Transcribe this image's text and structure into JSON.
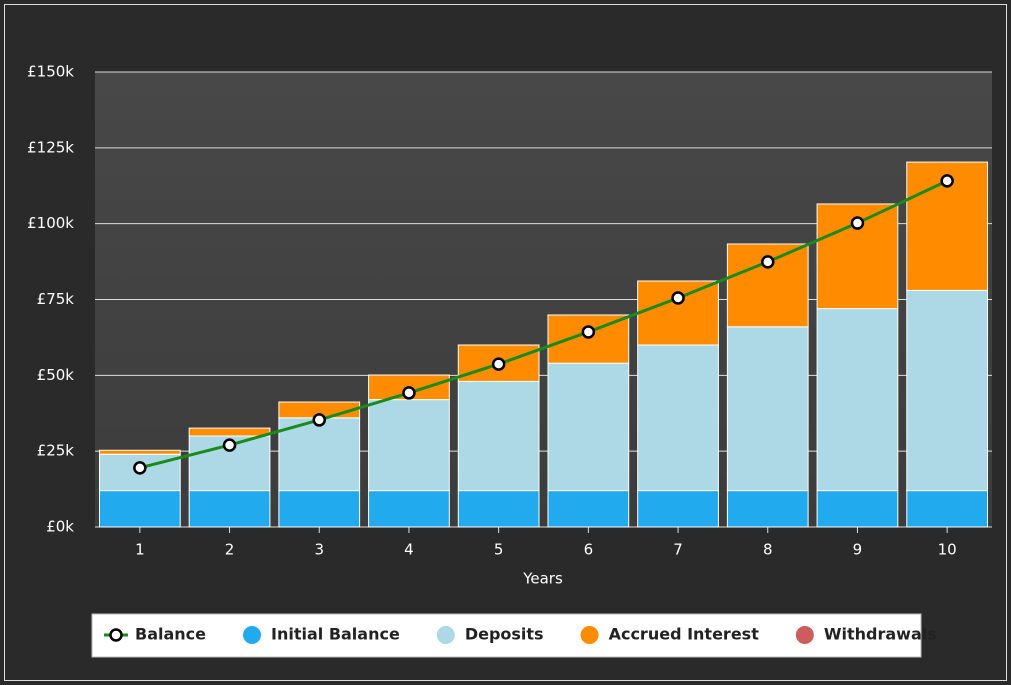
{
  "chart_data": {
    "type": "bar",
    "stacked": true,
    "x_label": "Years",
    "categories": [
      "1",
      "2",
      "3",
      "4",
      "5",
      "6",
      "7",
      "8",
      "9",
      "10"
    ],
    "series": [
      {
        "name": "Balance",
        "type": "line",
        "color": "#1a8a1a",
        "values": [
          19.5,
          27,
          35.3,
          44.2,
          53.7,
          64.3,
          75.5,
          87.4,
          100.2,
          114.1
        ]
      },
      {
        "name": "Initial Balance",
        "type": "bar",
        "color": "#22aaee",
        "values": [
          12,
          12,
          12,
          12,
          12,
          12,
          12,
          12,
          12,
          12
        ]
      },
      {
        "name": "Deposits",
        "type": "bar",
        "color": "#add8e6",
        "values": [
          12,
          18,
          24,
          30,
          36,
          42,
          48,
          54,
          60,
          66
        ]
      },
      {
        "name": "Accrued Interest",
        "type": "bar",
        "color": "#ff8c00",
        "values": [
          1.3,
          2.6,
          5.2,
          8.1,
          12,
          15.9,
          21.1,
          27.3,
          34.5,
          42.3
        ]
      },
      {
        "name": "Withdrawals",
        "type": "bar",
        "color": "#cd5c5c",
        "values": [
          0,
          0,
          0,
          0,
          0,
          0,
          0,
          0,
          0,
          0
        ]
      }
    ],
    "ylim": [
      0,
      150
    ],
    "yticks": [
      {
        "value": 0,
        "label": "£0k"
      },
      {
        "value": 25,
        "label": "£25k"
      },
      {
        "value": 50,
        "label": "£50k"
      },
      {
        "value": 75,
        "label": "£75k"
      },
      {
        "value": 100,
        "label": "£100k"
      },
      {
        "value": 125,
        "label": "£125k"
      },
      {
        "value": 150,
        "label": "£150k"
      }
    ],
    "grid": true,
    "legend": "bottom"
  }
}
